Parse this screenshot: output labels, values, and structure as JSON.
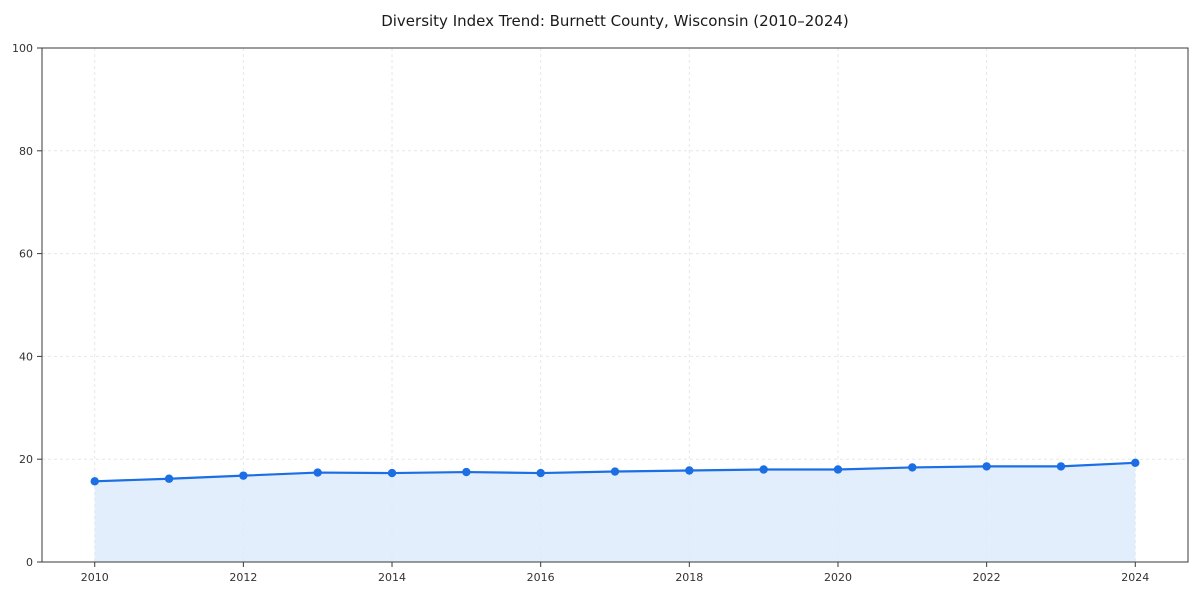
{
  "chart_data": {
    "type": "line",
    "title": "Diversity Index Trend: Burnett County, Wisconsin (2010–2024)",
    "xlabel": "",
    "ylabel": "",
    "x": [
      2010,
      2011,
      2012,
      2013,
      2014,
      2015,
      2016,
      2017,
      2018,
      2019,
      2020,
      2021,
      2022,
      2023,
      2024
    ],
    "values": [
      15.7,
      16.2,
      16.8,
      17.4,
      17.3,
      17.5,
      17.3,
      17.6,
      17.8,
      18.0,
      18.0,
      18.4,
      18.6,
      18.6,
      19.3
    ],
    "xticks": [
      2010,
      2012,
      2014,
      2016,
      2018,
      2020,
      2022,
      2024
    ],
    "yticks": [
      0,
      20,
      40,
      60,
      80,
      100
    ],
    "ylim": [
      0,
      100
    ],
    "grid": true,
    "legend": "none",
    "line_color": "#1b6ee3",
    "marker_color": "#1b6ee3",
    "fill_color": "#dceafc",
    "grid_color": "#e7e7e7",
    "spine_color": "#3a3a3a",
    "tick_label_color": "#333333"
  }
}
